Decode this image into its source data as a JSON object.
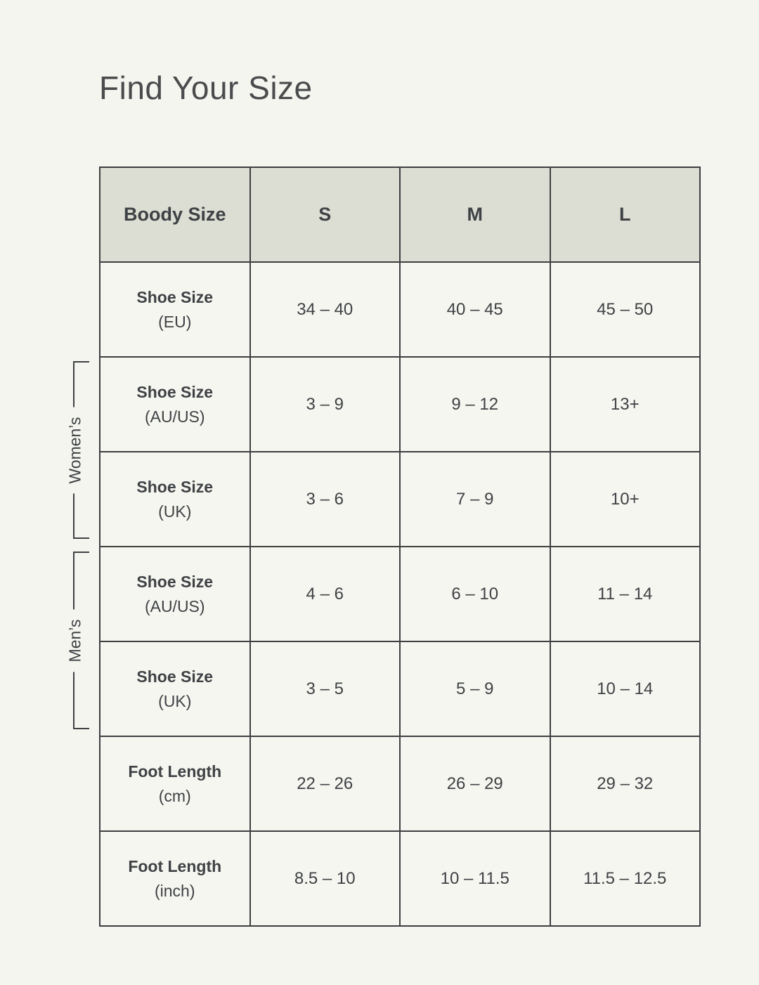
{
  "title": "Find Your Size",
  "colors": {
    "page_bg": "#f5f5ef",
    "header_bg": "#dcddd3",
    "cell_bg": "#f6f6f0",
    "border": "#3d3f41",
    "text": "#3f4245",
    "title_text": "#4a4b4d"
  },
  "table": {
    "header": {
      "col0": "Boody Size",
      "col1": "S",
      "col2": "M",
      "col3": "L"
    },
    "rows": [
      {
        "label": "Shoe Size",
        "unit": "(EU)",
        "values": [
          "34 – 40",
          "40 – 45",
          "45 – 50"
        ]
      },
      {
        "label": "Shoe Size",
        "unit": "(AU/US)",
        "values": [
          "3 – 9",
          "9 – 12",
          "13+"
        ]
      },
      {
        "label": "Shoe Size",
        "unit": "(UK)",
        "values": [
          "3 – 6",
          "7 – 9",
          "10+"
        ]
      },
      {
        "label": "Shoe Size",
        "unit": "(AU/US)",
        "values": [
          "4 – 6",
          "6 – 10",
          "11 – 14"
        ]
      },
      {
        "label": "Shoe Size",
        "unit": "(UK)",
        "values": [
          "3 – 5",
          "5 – 9",
          "10 – 14"
        ]
      },
      {
        "label": "Foot Length",
        "unit": "(cm)",
        "values": [
          "22 – 26",
          "26 – 29",
          "29 – 32"
        ]
      },
      {
        "label": "Foot Length",
        "unit": "(inch)",
        "values": [
          "8.5 – 10",
          "10 – 11.5",
          "11.5 – 12.5"
        ]
      }
    ],
    "groups": [
      {
        "label": "Women’s",
        "applies_to_rows": [
          2,
          3
        ]
      },
      {
        "label": "Men’s",
        "applies_to_rows": [
          4,
          5
        ]
      }
    ]
  },
  "chart_data": {
    "type": "table",
    "title": "Find Your Size",
    "columns": [
      "Boody Size",
      "S",
      "M",
      "L"
    ],
    "rows": [
      [
        "Shoe Size (EU)",
        "34 – 40",
        "40 – 45",
        "45 – 50"
      ],
      [
        "Shoe Size (AU/US)",
        "3 – 9",
        "9 – 12",
        "13+"
      ],
      [
        "Shoe Size (UK)",
        "3 – 6",
        "7 – 9",
        "10+"
      ],
      [
        "Shoe Size (AU/US)",
        "4 – 6",
        "6 – 10",
        "11 – 14"
      ],
      [
        "Shoe Size (UK)",
        "3 – 5",
        "5 – 9",
        "10 – 14"
      ],
      [
        "Foot Length (cm)",
        "22 – 26",
        "26 – 29",
        "29 – 32"
      ],
      [
        "Foot Length (inch)",
        "8.5 – 10",
        "10 – 11.5",
        "11.5 – 12.5"
      ]
    ],
    "row_groups": [
      {
        "label": "Women’s",
        "rows": [
          2,
          3
        ]
      },
      {
        "label": "Men’s",
        "rows": [
          4,
          5
        ]
      }
    ]
  }
}
